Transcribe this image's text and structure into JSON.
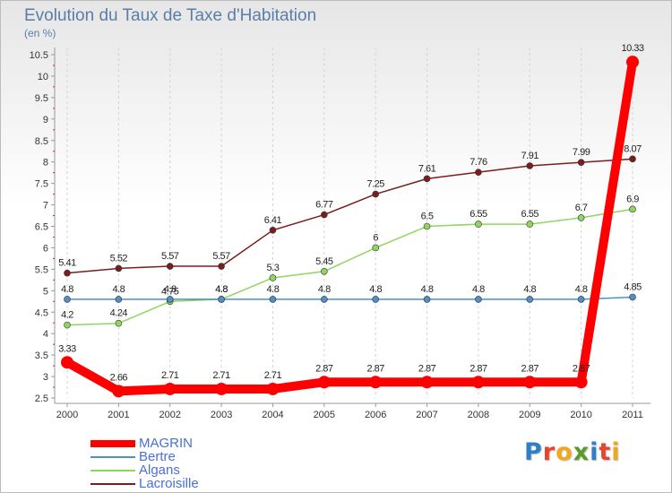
{
  "page": {
    "title": "Evolution du Taux de Taxe d'Habitation",
    "subtitle": "(en %)"
  },
  "logo": {
    "text": "Proxiti",
    "letter_colors": [
      "#2d7fc6",
      "#e8432b",
      "#f0a81e",
      "#5b9b2c",
      "#2d7fc6",
      "#e8432b",
      "#f0a81e"
    ]
  },
  "chart_data": {
    "type": "line",
    "title": "Evolution du Taux de Taxe d'Habitation",
    "subtitle": "(en %)",
    "xlabel": "",
    "ylabel": "",
    "x": [
      "2000",
      "2001",
      "2002",
      "2003",
      "2004",
      "2005",
      "2006",
      "2007",
      "2008",
      "2009",
      "2010",
      "2011"
    ],
    "ylim": [
      2.5,
      10.5
    ],
    "y_ticks": [
      "2.5",
      "3",
      "3.5",
      "4",
      "4.5",
      "5",
      "5.5",
      "6",
      "6.5",
      "7",
      "7.5",
      "8",
      "8.5",
      "9",
      "9.5",
      "10",
      "10.5"
    ],
    "grid": "vertical dashed",
    "legend_position": "bottom-left",
    "series": [
      {
        "name": "MAGRIN",
        "color": "#ff0000",
        "emphasis": "thick",
        "values": [
          3.33,
          2.66,
          2.71,
          2.71,
          2.71,
          2.87,
          2.87,
          2.87,
          2.87,
          2.87,
          2.87,
          10.33
        ],
        "labels": [
          "3.33",
          "2.66",
          "2.71",
          "2.71",
          "2.71",
          "2.87",
          "2.87",
          "2.87",
          "2.87",
          "2.87",
          "2.87",
          "10.33"
        ]
      },
      {
        "name": "Bertre",
        "color": "#4f8fcb",
        "values": [
          4.8,
          4.8,
          4.8,
          4.8,
          4.8,
          4.8,
          4.8,
          4.8,
          4.8,
          4.8,
          4.8,
          4.85
        ],
        "labels": [
          "4.8",
          "4.8",
          "4.8",
          "4.8",
          "4.8",
          "4.8",
          "4.8",
          "4.8",
          "4.8",
          "4.8",
          "4.8",
          "4.85"
        ]
      },
      {
        "name": "Algans",
        "color": "#8fd65f",
        "values": [
          4.2,
          4.24,
          4.75,
          4.8,
          5.3,
          5.45,
          6,
          6.5,
          6.55,
          6.55,
          6.7,
          6.9
        ],
        "labels": [
          "4.2",
          "4.24",
          "4.75",
          "4.8",
          "5.3",
          "5.45",
          "6",
          "6.5",
          "6.55",
          "6.55",
          "6.7",
          "6.9"
        ]
      },
      {
        "name": "Lacroisille",
        "color": "#7a1d1d",
        "values": [
          5.41,
          5.52,
          5.57,
          5.57,
          6.41,
          6.77,
          7.25,
          7.61,
          7.76,
          7.91,
          7.99,
          8.07
        ],
        "labels": [
          "5.41",
          "5.52",
          "5.57",
          "5.57",
          "6.41",
          "6.77",
          "7.25",
          "7.61",
          "7.76",
          "7.91",
          "7.99",
          "8.07"
        ]
      }
    ]
  }
}
